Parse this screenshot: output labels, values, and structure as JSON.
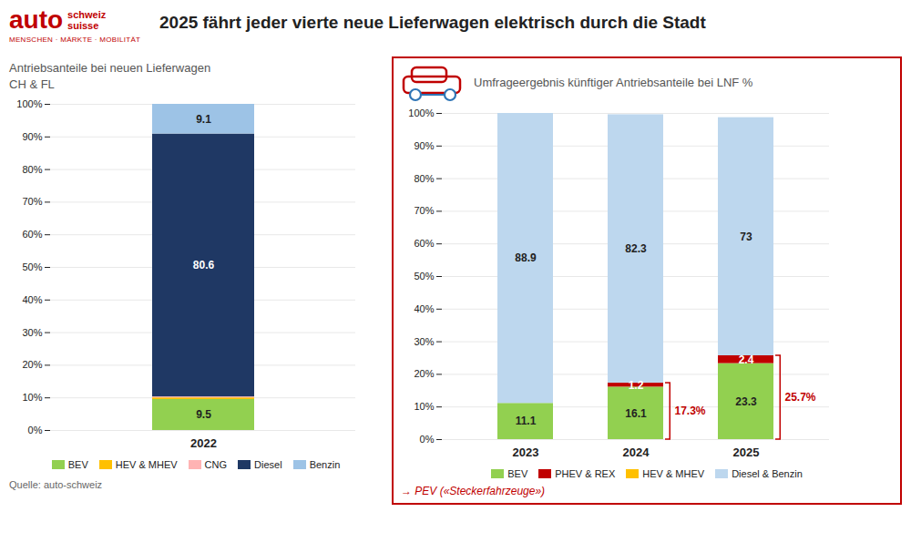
{
  "title": "2025 fährt jeder vierte neue Lieferwagen elektrisch durch die Stadt",
  "annotations": [
    "auto",
    "schweiz",
    "suisse",
    "MENSCHEN · MÄRKTE · MOBILITÄT"
  ],
  "caption": "Quelle: auto-schweiz",
  "chart_data": [
    {
      "type": "bar",
      "stacked": true,
      "title": "Antriebsanteile bei neuen Lieferwagen\nCH & FL",
      "categories": [
        "2022"
      ],
      "series": [
        {
          "name": "BEV",
          "color": "#92d050",
          "values": [
            9.5
          ],
          "data_labels": true
        },
        {
          "name": "HEV & MHEV",
          "color": "#ffc000",
          "values": [
            0.5
          ],
          "data_labels": false
        },
        {
          "name": "CNG",
          "color": "#ffb3b3",
          "values": [
            0.3
          ],
          "data_labels": false
        },
        {
          "name": "Diesel",
          "color": "#1f3864",
          "values": [
            80.6
          ],
          "data_labels": true
        },
        {
          "name": "Benzin",
          "color": "#9dc3e6",
          "values": [
            9.1
          ],
          "data_labels": true
        }
      ],
      "ylim": [
        0,
        100
      ],
      "yticks": [
        {
          "value": 0,
          "label": "0%"
        },
        {
          "value": 10,
          "label": "10%"
        },
        {
          "value": 20,
          "label": "20%"
        },
        {
          "value": 30,
          "label": "30%"
        },
        {
          "value": 40,
          "label": "40%"
        },
        {
          "value": 50,
          "label": "50%"
        },
        {
          "value": 60,
          "label": "60%"
        },
        {
          "value": 70,
          "label": "70%"
        },
        {
          "value": 80,
          "label": "80%"
        },
        {
          "value": 90,
          "label": "90%"
        },
        {
          "value": 100,
          "label": "100%"
        }
      ],
      "grid": true,
      "legend": "bottom"
    },
    {
      "type": "bar",
      "stacked": true,
      "title": "Umfrageergebnis künftiger Antriebsanteile bei LNF %",
      "categories": [
        "2023",
        "2024",
        "2025"
      ],
      "series": [
        {
          "name": "BEV",
          "color": "#92d050",
          "values": [
            11.1,
            16.1,
            23.3
          ],
          "data_labels": true
        },
        {
          "name": "PHEV & REX",
          "color": "#c00000",
          "values": [
            0.0,
            1.2,
            2.4
          ],
          "data_labels": true
        },
        {
          "name": "HEV & MHEV",
          "color": "#ffc000",
          "values": [
            0.0,
            0.0,
            0.0
          ],
          "data_labels": false
        },
        {
          "name": "Diesel & Benzin",
          "color": "#bdd7ee",
          "values": [
            88.9,
            82.3,
            73.0
          ],
          "data_labels": true
        }
      ],
      "ylim": [
        0,
        100
      ],
      "yticks": [
        {
          "value": 0,
          "label": "0%"
        },
        {
          "value": 10,
          "label": "10%"
        },
        {
          "value": 20,
          "label": "20%"
        },
        {
          "value": 30,
          "label": "30%"
        },
        {
          "value": 40,
          "label": "40%"
        },
        {
          "value": 50,
          "label": "50%"
        },
        {
          "value": 60,
          "label": "60%"
        },
        {
          "value": 70,
          "label": "70%"
        },
        {
          "value": 80,
          "label": "80%"
        },
        {
          "value": 90,
          "label": "90%"
        },
        {
          "value": 100,
          "label": "100%"
        }
      ],
      "grid": true,
      "legend": "bottom",
      "annotations": [
        {
          "x": "2024",
          "y": 17.3,
          "text": "17.3%",
          "color": "#c00000"
        },
        {
          "x": "2025",
          "y": 25.7,
          "text": "25.7%",
          "color": "#c00000"
        },
        {
          "text": "→ PEV («Steckerfahrzeuge»)",
          "color": "#c00000"
        }
      ]
    }
  ]
}
